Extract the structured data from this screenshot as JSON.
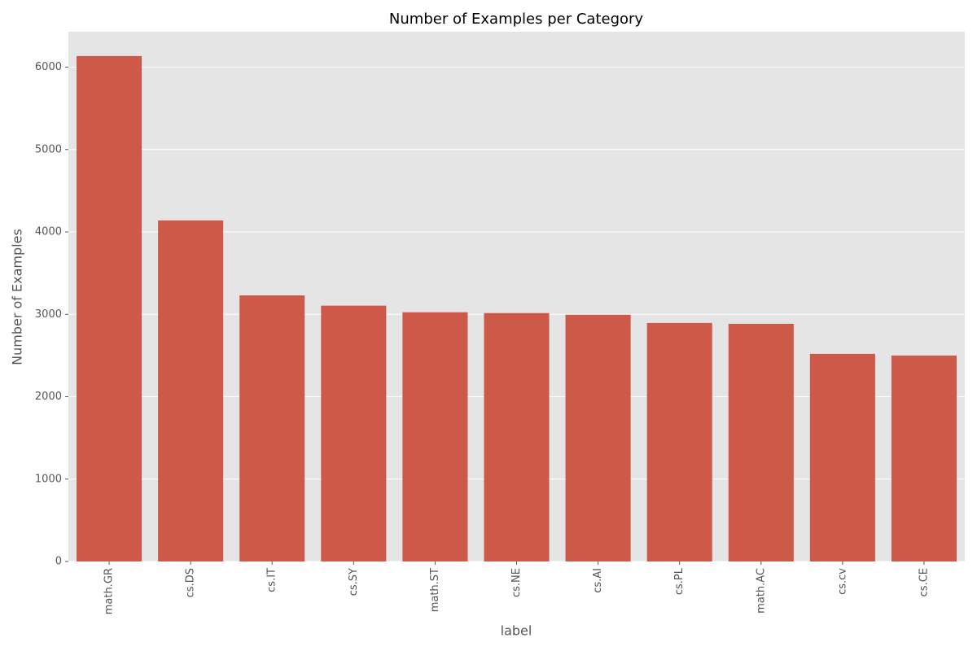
{
  "chart_data": {
    "type": "bar",
    "title": "Number of Examples per Category",
    "x_label": "label",
    "y_label": "Number of Examples",
    "categories": [
      "math.GR",
      "cs.DS",
      "cs.IT",
      "cs.SY",
      "math.ST",
      "cs.NE",
      "cs.AI",
      "cs.PL",
      "math.AC",
      "cs.cv",
      "cs.CE"
    ],
    "values": [
      6135,
      4140,
      3230,
      3105,
      3025,
      3015,
      2995,
      2895,
      2885,
      2520,
      2500
    ],
    "color": "#cd5a48",
    "ylim": [
      0,
      6430
    ],
    "yticks": [
      0,
      1000,
      2000,
      3000,
      4000,
      5000,
      6000
    ],
    "grid": true
  }
}
